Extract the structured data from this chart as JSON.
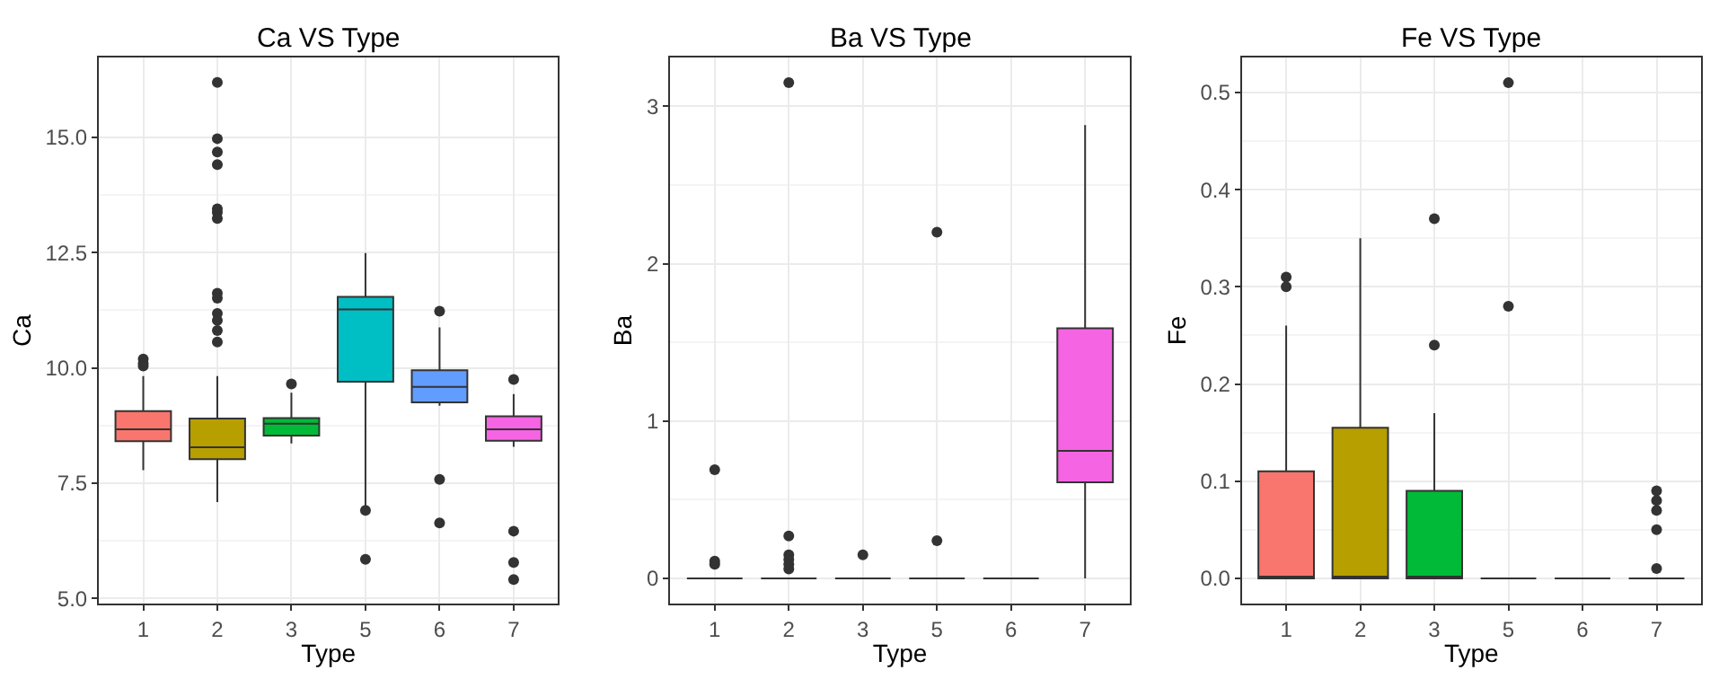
{
  "chart_data": [
    {
      "type": "box",
      "title": "Ca VS Type",
      "xlabel": "Type",
      "ylabel": "Ca",
      "categories": [
        "1",
        "2",
        "3",
        "5",
        "6",
        "7"
      ],
      "colors": [
        "#f8766d",
        "#b79f00",
        "#00ba38",
        "#00bfc4",
        "#619cff",
        "#f564e3"
      ],
      "ylim": [
        4.89,
        16.73
      ],
      "yticks": [
        {
          "value": 5,
          "label": "5.0"
        },
        {
          "value": 7.5,
          "label": "7.5"
        },
        {
          "value": 10,
          "label": "10.0"
        },
        {
          "value": 12.5,
          "label": "12.5"
        },
        {
          "value": 15,
          "label": "15.0"
        }
      ],
      "grid": true,
      "boxes": [
        {
          "low": 7.78,
          "q1": 8.41,
          "median": 8.67,
          "q3": 9.06,
          "high": 9.82,
          "outliers": [
            10.19,
            10.1,
            10.04
          ]
        },
        {
          "low": 7.09,
          "q1": 8.02,
          "median": 8.28,
          "q3": 8.9,
          "high": 9.82,
          "outliers": [
            16.19,
            14.97,
            14.68,
            14.41,
            13.45,
            13.37,
            13.24,
            11.62,
            11.51,
            11.18,
            11.03,
            10.81,
            10.56
          ]
        },
        {
          "low": 8.36,
          "q1": 8.53,
          "median": 8.79,
          "q3": 8.91,
          "high": 9.46,
          "outliers": [
            9.65
          ]
        },
        {
          "low": 7.0,
          "q1": 9.7,
          "median": 11.27,
          "q3": 11.54,
          "high": 12.49,
          "outliers": [
            6.91,
            5.85
          ]
        },
        {
          "low": 9.18,
          "q1": 9.25,
          "median": 9.59,
          "q3": 9.95,
          "high": 10.88,
          "outliers": [
            11.23,
            7.58,
            6.64
          ]
        },
        {
          "low": 8.29,
          "q1": 8.42,
          "median": 8.67,
          "q3": 8.95,
          "high": 9.43,
          "outliers": [
            9.75,
            6.46,
            5.78,
            5.41
          ]
        }
      ]
    },
    {
      "type": "box",
      "title": "Ba VS Type",
      "xlabel": "Type",
      "ylabel": "Ba",
      "categories": [
        "1",
        "2",
        "3",
        "5",
        "6",
        "7"
      ],
      "colors": [
        "#333333",
        "#333333",
        "#333333",
        "#333333",
        "#333333",
        "#f564e3"
      ],
      "ylim": [
        -0.16,
        3.31
      ],
      "yticks": [
        0,
        1,
        2,
        3
      ],
      "grid": true,
      "boxes": [
        {
          "low": 0,
          "q1": 0,
          "median": 0,
          "q3": 0,
          "high": 0,
          "outliers": [
            0.69,
            0.11,
            0.09
          ]
        },
        {
          "low": 0,
          "q1": 0,
          "median": 0,
          "q3": 0,
          "high": 0,
          "outliers": [
            3.15,
            0.27,
            0.15,
            0.12,
            0.09,
            0.06
          ]
        },
        {
          "low": 0,
          "q1": 0,
          "median": 0,
          "q3": 0,
          "high": 0,
          "outliers": [
            0.15
          ]
        },
        {
          "low": 0,
          "q1": 0,
          "median": 0,
          "q3": 0,
          "high": 0,
          "outliers": [
            2.2,
            0.24
          ]
        },
        {
          "low": 0,
          "q1": 0,
          "median": 0,
          "q3": 0,
          "high": 0
        },
        {
          "low": 0,
          "q1": 0.61,
          "median": 0.81,
          "q3": 1.59,
          "high": 2.88
        }
      ]
    },
    {
      "type": "box",
      "title": "Fe VS Type",
      "xlabel": "Type",
      "ylabel": "Fe",
      "categories": [
        "1",
        "2",
        "3",
        "5",
        "6",
        "7"
      ],
      "colors": [
        "#f8766d",
        "#b79f00",
        "#00ba38",
        "#333333",
        "#333333",
        "#333333"
      ],
      "ylim": [
        -0.026,
        0.536
      ],
      "yticks": [
        {
          "value": 0,
          "label": "0.0"
        },
        0.1,
        0.2,
        0.3,
        0.4,
        0.5
      ],
      "grid": true,
      "boxes": [
        {
          "low": 0,
          "q1": 0,
          "median": 0,
          "q3": 0.11,
          "high": 0.26,
          "outliers": [
            0.31,
            0.3
          ]
        },
        {
          "low": 0,
          "q1": 0,
          "median": 0,
          "q3": 0.155,
          "high": 0.35
        },
        {
          "low": 0,
          "q1": 0,
          "median": 0,
          "q3": 0.09,
          "high": 0.17,
          "outliers": [
            0.24,
            0.37
          ]
        },
        {
          "low": 0,
          "q1": 0,
          "median": 0,
          "q3": 0,
          "high": 0,
          "outliers": [
            0.28,
            0.51
          ]
        },
        {
          "low": 0,
          "q1": 0,
          "median": 0,
          "q3": 0,
          "high": 0
        },
        {
          "low": 0,
          "q1": 0,
          "median": 0,
          "q3": 0,
          "high": 0,
          "outliers": [
            0.09,
            0.08,
            0.07,
            0.05,
            0.01
          ]
        }
      ]
    }
  ]
}
